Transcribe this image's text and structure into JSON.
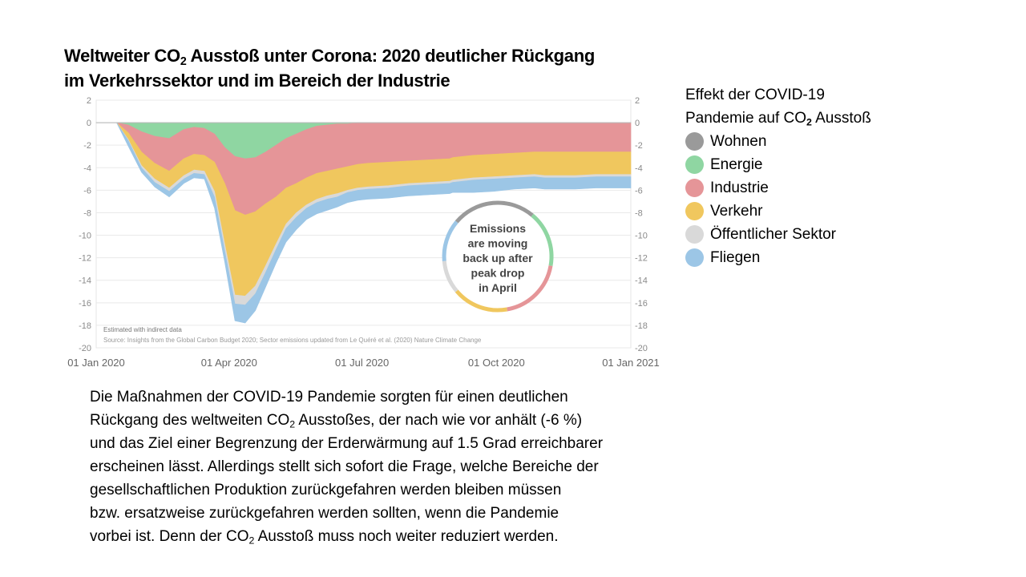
{
  "slide": {
    "title_lines": [
      [
        "Weltweiter CO",
        "2",
        " Ausstoß unter Corona: 2020 deutlicher Rückgang"
      ],
      [
        "im Verkehrssektor und im Bereich der Industrie",
        "",
        ""
      ]
    ],
    "body_lines": [
      [
        "Die Maßnahmen  der COVID-19 Pandemie sorgten für einen deutlichen",
        "",
        ""
      ],
      [
        "Rückgang des weltweiten CO",
        "2",
        " Ausstoßes, der nach wie vor anhält (-6 %)"
      ],
      [
        "und das Ziel einer Begrenzung der Erderwärmung auf 1.5 Grad erreichbarer",
        "",
        ""
      ],
      [
        "erscheinen lässt. Allerdings stellt sich sofort die Frage, welche Bereiche der",
        "",
        ""
      ],
      [
        "gesellschaftlichen Produktion zurückgefahren werden bleiben müssen",
        "",
        ""
      ],
      [
        "bzw. ersatzweise zurückgefahren werden sollten, wenn die Pandemie",
        "",
        ""
      ],
      [
        "vorbei ist. Denn der CO",
        "2",
        " Ausstoß muss noch weiter reduziert werden."
      ]
    ]
  },
  "legend": {
    "title_lines": [
      [
        "Effekt der COVID-19",
        "",
        ""
      ],
      [
        "Pandemie auf CO",
        "2",
        " Ausstoß"
      ]
    ],
    "items": [
      {
        "label": "Wohnen",
        "color": "#9a9a9a"
      },
      {
        "label": "Energie",
        "color": "#8fd6a2"
      },
      {
        "label": "Industrie",
        "color": "#e59598"
      },
      {
        "label": "Verkehr",
        "color": "#f0c75e"
      },
      {
        "label": "Öffentlicher Sektor",
        "color": "#d9d9d9"
      },
      {
        "label": "Fliegen",
        "color": "#9cc6e6"
      }
    ]
  },
  "chart_data": {
    "type": "area",
    "ylim": [
      -20,
      2
    ],
    "yticks": [
      2,
      0,
      -2,
      -4,
      -6,
      -8,
      -10,
      -12,
      -14,
      -16,
      -18,
      -20
    ],
    "xlim": [
      "2020-01-01",
      "2021-01-01"
    ],
    "xtick_labels": [
      "01 Jan 2020",
      "01 Apr 2020",
      "01 Jul 2020",
      "01 Oct 2020",
      "01 Jan 2021"
    ],
    "x": [
      "2020-01-01",
      "2020-01-15",
      "2020-01-23",
      "2020-02-01",
      "2020-02-10",
      "2020-02-20",
      "2020-03-01",
      "2020-03-08",
      "2020-03-15",
      "2020-03-22",
      "2020-03-29",
      "2020-04-05",
      "2020-04-12",
      "2020-04-19",
      "2020-04-26",
      "2020-05-03",
      "2020-05-10",
      "2020-05-17",
      "2020-05-24",
      "2020-05-31",
      "2020-06-07",
      "2020-06-14",
      "2020-06-21",
      "2020-06-28",
      "2020-07-05",
      "2020-07-19",
      "2020-08-02",
      "2020-08-16",
      "2020-08-30",
      "2020-09-01",
      "2020-09-15",
      "2020-09-29",
      "2020-10-13",
      "2020-10-27",
      "2020-11-03",
      "2020-11-10",
      "2020-11-24",
      "2020-12-08",
      "2020-12-22",
      "2021-01-01"
    ],
    "series": [
      {
        "name": "Wohnen",
        "color": "#9a9a9a",
        "values": [
          0,
          0,
          0,
          0,
          0,
          0,
          0,
          0,
          0,
          0,
          0,
          0,
          0,
          0,
          0,
          0,
          0,
          0,
          0,
          0,
          0,
          0,
          0,
          0,
          0,
          0,
          0,
          0,
          0,
          0,
          0,
          0,
          0,
          0,
          0,
          0,
          0,
          0,
          0,
          0
        ]
      },
      {
        "name": "Energie",
        "color": "#8fd6a2",
        "values": [
          0,
          0,
          -0.2,
          -0.8,
          -1.2,
          -1.4,
          -0.6,
          -0.4,
          -0.5,
          -1.0,
          -2.2,
          -3.0,
          -3.2,
          -3.1,
          -2.6,
          -2.0,
          -1.4,
          -1.0,
          -0.6,
          -0.3,
          -0.2,
          -0.1,
          -0.1,
          0,
          0,
          0,
          0,
          0,
          0,
          0,
          0,
          0,
          0,
          0,
          0,
          0,
          0,
          0,
          0,
          0
        ]
      },
      {
        "name": "Industrie",
        "color": "#e59598",
        "values": [
          0,
          0,
          -0.7,
          -1.8,
          -2.4,
          -2.9,
          -2.6,
          -2.4,
          -2.4,
          -2.5,
          -3.2,
          -4.8,
          -5.0,
          -4.8,
          -4.6,
          -4.6,
          -4.4,
          -4.4,
          -4.3,
          -4.2,
          -4.1,
          -4.0,
          -3.8,
          -3.7,
          -3.6,
          -3.5,
          -3.4,
          -3.3,
          -3.2,
          -3.1,
          -2.9,
          -2.8,
          -2.7,
          -2.6,
          -2.6,
          -2.6,
          -2.6,
          -2.6,
          -2.6,
          -2.6
        ]
      },
      {
        "name": "Verkehr",
        "color": "#f0c75e",
        "values": [
          0,
          0,
          -0.6,
          -1.2,
          -1.4,
          -1.5,
          -1.5,
          -1.4,
          -1.4,
          -2.6,
          -5.4,
          -7.5,
          -7.2,
          -6.6,
          -5.5,
          -4.2,
          -3.2,
          -2.6,
          -2.4,
          -2.3,
          -2.2,
          -2.2,
          -2.1,
          -2.1,
          -2.1,
          -2.1,
          -2.0,
          -2.0,
          -2.0,
          -2.0,
          -2.0,
          -2.0,
          -2.0,
          -2.0,
          -2.1,
          -2.1,
          -2.1,
          -2.0,
          -2.0,
          -2.0
        ]
      },
      {
        "name": "Öffentlicher Sektor",
        "color": "#d9d9d9",
        "values": [
          0,
          0,
          -0.1,
          -0.2,
          -0.3,
          -0.3,
          -0.3,
          -0.3,
          -0.3,
          -0.5,
          -0.6,
          -0.8,
          -0.8,
          -0.7,
          -0.6,
          -0.5,
          -0.4,
          -0.4,
          -0.3,
          -0.3,
          -0.3,
          -0.3,
          -0.2,
          -0.2,
          -0.2,
          -0.2,
          -0.2,
          -0.2,
          -0.2,
          -0.2,
          -0.2,
          -0.2,
          -0.2,
          -0.2,
          -0.2,
          -0.2,
          -0.2,
          -0.2,
          -0.2,
          -0.2
        ]
      },
      {
        "name": "Fliegen",
        "color": "#9cc6e6",
        "values": [
          0,
          0,
          -0.5,
          -0.4,
          -0.4,
          -0.5,
          -0.4,
          -0.4,
          -0.4,
          -1.0,
          -1.0,
          -1.5,
          -1.6,
          -1.5,
          -1.3,
          -1.2,
          -1.2,
          -1.1,
          -1.0,
          -1.0,
          -1.0,
          -0.9,
          -0.9,
          -0.9,
          -0.9,
          -0.9,
          -0.9,
          -0.9,
          -0.9,
          -0.9,
          -1.1,
          -1.1,
          -1.0,
          -1.0,
          -1.0,
          -1.0,
          -1.0,
          -1.0,
          -1.0,
          -1.0
        ]
      }
    ],
    "annotation": [
      "Emissions",
      "are moving",
      "back up after",
      "peak drop",
      "in April"
    ],
    "ring_colors": [
      "#9a9a9a",
      "#8fd6a2",
      "#e59598",
      "#f0c75e",
      "#d9d9d9",
      "#9cc6e6"
    ],
    "note": "Estimated with indirect data",
    "source": "Source: Insights from the Global Carbon Budget 2020; Sector emissions updated from Le Quéré et al. (2020) Nature Climate Change"
  }
}
